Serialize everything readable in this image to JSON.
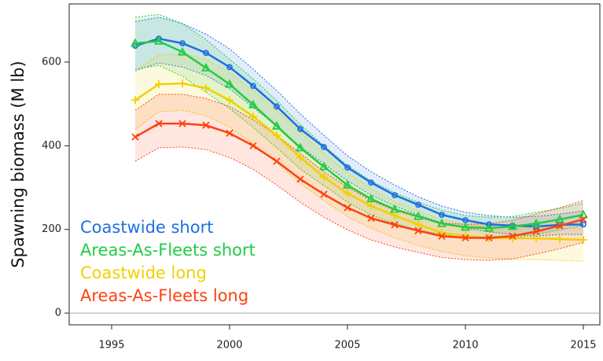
{
  "chart_data": {
    "type": "line",
    "y_label": "Spawning biomass (M lb)",
    "x": [
      1996,
      1997,
      1998,
      1999,
      2000,
      2001,
      2002,
      2003,
      2004,
      2005,
      2006,
      2007,
      2008,
      2009,
      2010,
      2011,
      2012,
      2013,
      2014,
      2015
    ],
    "xlim": [
      1993.2,
      2015.7
    ],
    "xticks": [
      1995,
      2000,
      2005,
      2010,
      2015
    ],
    "ylim": [
      -28,
      739
    ],
    "yticks": [
      0,
      200,
      400,
      600
    ],
    "zero_line": true,
    "legend": "lower left",
    "series": [
      {
        "name": "Coastwide short",
        "color": "#1f6fe0",
        "marker": "circle",
        "values": [
          639,
          656,
          645,
          622,
          588,
          543,
          494,
          440,
          397,
          348,
          312,
          282,
          259,
          235,
          222,
          212,
          209,
          207,
          211,
          212
        ],
        "upper": [
          697,
          707,
          692,
          667,
          632,
          583,
          532,
          476,
          425,
          376,
          338,
          306,
          278,
          256,
          241,
          233,
          229,
          231,
          237,
          244
        ],
        "lower": [
          579,
          598,
          588,
          568,
          536,
          492,
          447,
          398,
          357,
          316,
          282,
          256,
          235,
          216,
          203,
          194,
          188,
          184,
          188,
          188
        ]
      },
      {
        "name": "Areas-As-Fleets short",
        "color": "#22cc44",
        "marker": "triangle",
        "values": [
          645,
          650,
          624,
          586,
          547,
          498,
          447,
          395,
          350,
          306,
          273,
          248,
          231,
          214,
          205,
          203,
          207,
          214,
          224,
          235
        ],
        "upper": [
          707,
          714,
          692,
          654,
          607,
          560,
          508,
          451,
          400,
          353,
          316,
          288,
          265,
          246,
          233,
          229,
          231,
          241,
          250,
          263
        ],
        "lower": [
          583,
          592,
          566,
          528,
          489,
          444,
          395,
          344,
          305,
          265,
          235,
          214,
          199,
          188,
          180,
          177,
          180,
          188,
          199,
          209
        ]
      },
      {
        "name": "Coastwide long",
        "color": "#f0d000",
        "marker": "plus",
        "values": [
          509,
          547,
          549,
          538,
          509,
          470,
          425,
          372,
          325,
          286,
          256,
          233,
          212,
          192,
          184,
          180,
          179,
          179,
          177,
          175
        ],
        "upper": [
          579,
          617,
          620,
          607,
          575,
          532,
          485,
          432,
          382,
          335,
          297,
          267,
          244,
          224,
          212,
          207,
          203,
          203,
          203,
          203
        ],
        "lower": [
          438,
          481,
          485,
          472,
          444,
          404,
          359,
          310,
          269,
          231,
          203,
          180,
          162,
          147,
          137,
          132,
          128,
          128,
          126,
          124
        ]
      },
      {
        "name": "Areas-As-Fleets long",
        "color": "#ff4010",
        "marker": "cross",
        "values": [
          421,
          453,
          453,
          449,
          430,
          400,
          363,
          320,
          284,
          252,
          227,
          211,
          197,
          184,
          180,
          180,
          184,
          195,
          209,
          224
        ],
        "upper": [
          485,
          523,
          523,
          513,
          494,
          462,
          425,
          382,
          338,
          301,
          269,
          246,
          229,
          216,
          212,
          214,
          222,
          237,
          252,
          269
        ],
        "lower": [
          363,
          395,
          397,
          391,
          372,
          344,
          306,
          265,
          229,
          199,
          175,
          158,
          145,
          133,
          128,
          126,
          130,
          141,
          154,
          169
        ]
      }
    ]
  }
}
